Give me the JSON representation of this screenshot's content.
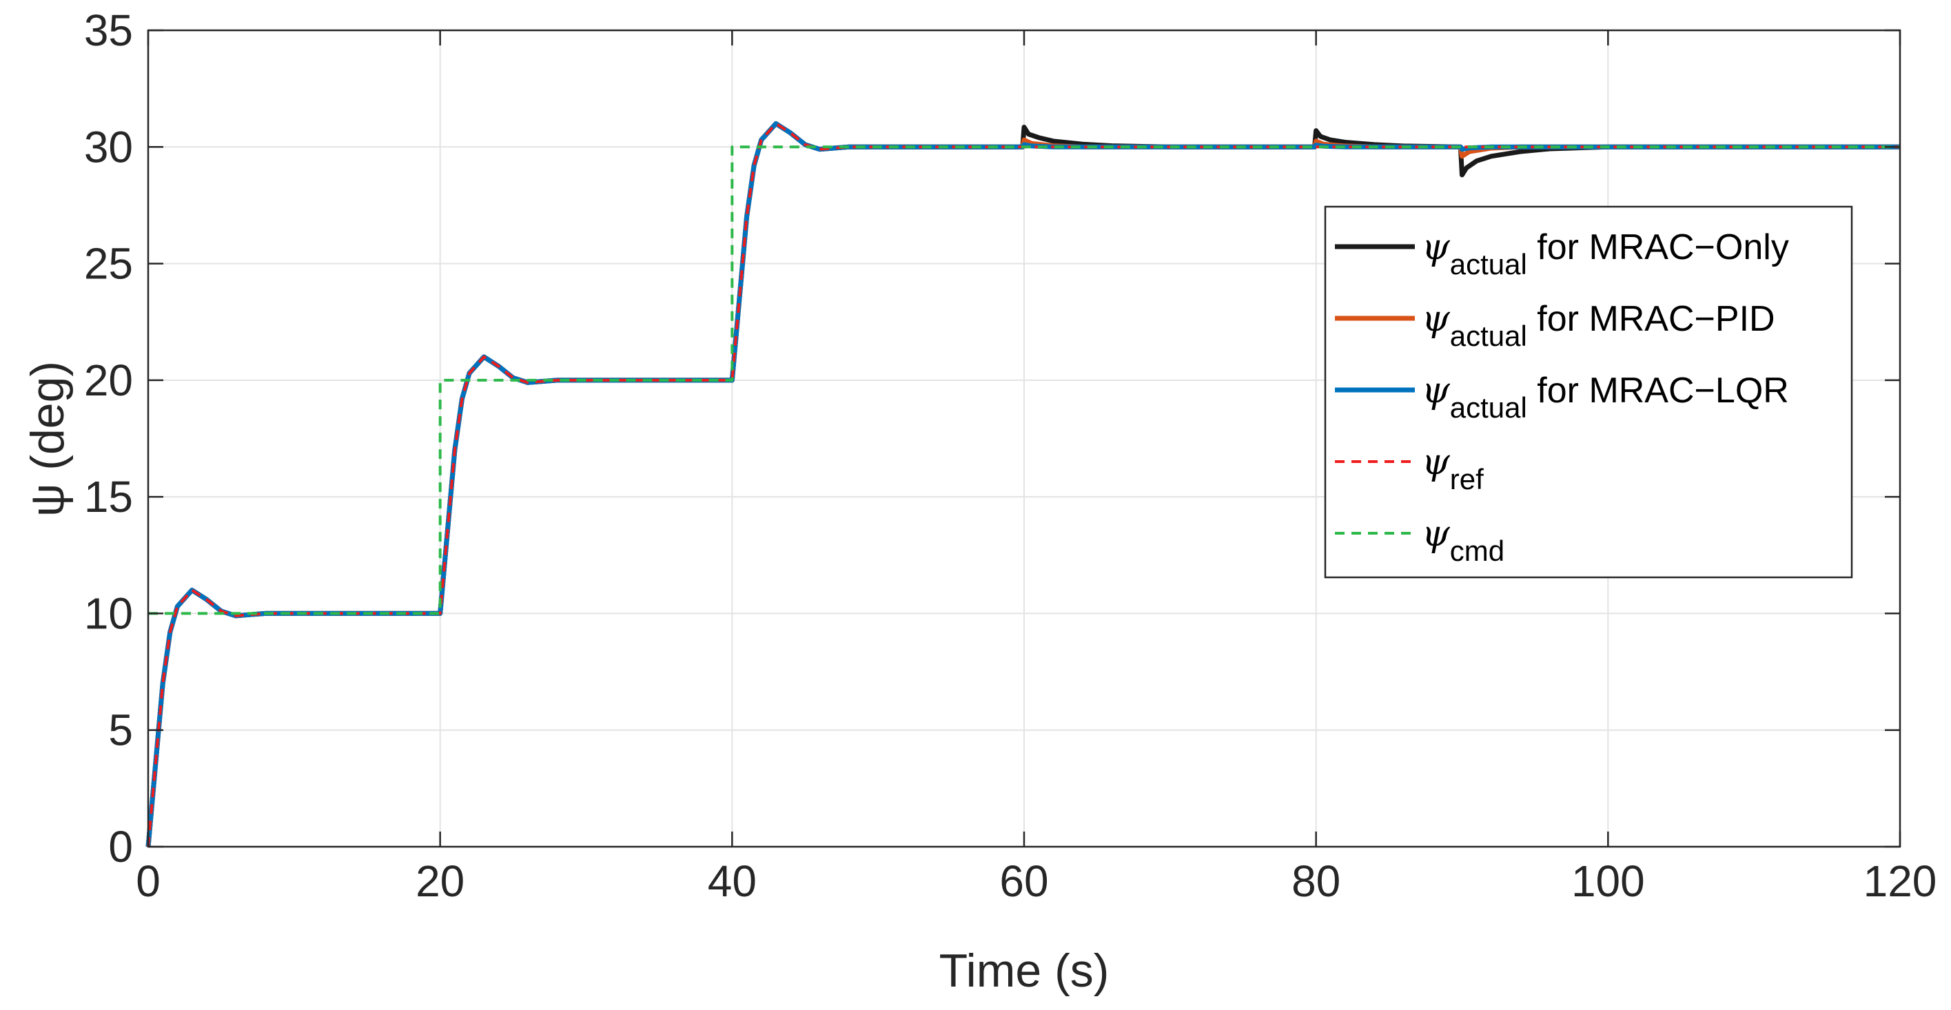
{
  "chart_data": {
    "type": "line",
    "title": "",
    "xlabel": "Time (s)",
    "ylabel": "ψ (deg)",
    "xlim": [
      0,
      120
    ],
    "ylim": [
      0,
      35
    ],
    "xticks": [
      0,
      20,
      40,
      60,
      80,
      100,
      120
    ],
    "yticks": [
      0,
      5,
      10,
      15,
      20,
      25,
      30,
      35
    ],
    "grid": true,
    "legend_position": "center-right",
    "series": [
      {
        "name": "ψactual for MRAC−Only",
        "symbol": "ψ",
        "subscript": "actual",
        "suffix": " for MRAC−Only",
        "color": "#1a1a1a",
        "style": "solid",
        "x": [
          0,
          0.5,
          1,
          1.5,
          2,
          3,
          4,
          5,
          6,
          8,
          10,
          19.9,
          20,
          20.5,
          21,
          21.5,
          22,
          23,
          24,
          25,
          26,
          28,
          30,
          39.9,
          40,
          40.5,
          41,
          41.5,
          42,
          43,
          44,
          45,
          46,
          48,
          50,
          59.9,
          60,
          60.3,
          61,
          62,
          64,
          66,
          70,
          79.9,
          80,
          80.3,
          81,
          82,
          84,
          86,
          89.9,
          90,
          90.3,
          91,
          92,
          94,
          96,
          100,
          120
        ],
        "y": [
          0,
          3.5,
          7,
          9.2,
          10.3,
          11,
          10.6,
          10.1,
          9.9,
          10,
          10,
          10,
          10,
          13.5,
          17,
          19.2,
          20.3,
          21,
          20.6,
          20.1,
          19.9,
          20,
          20,
          20,
          20,
          23.5,
          27,
          29.2,
          30.3,
          31,
          30.6,
          30.1,
          29.9,
          30,
          30,
          30,
          30.85,
          30.55,
          30.4,
          30.25,
          30.12,
          30.05,
          30,
          30,
          30.7,
          30.45,
          30.3,
          30.2,
          30.1,
          30.04,
          30,
          28.8,
          29.1,
          29.4,
          29.6,
          29.8,
          29.92,
          30,
          30
        ]
      },
      {
        "name": "ψactual for MRAC−PID",
        "symbol": "ψ",
        "subscript": "actual",
        "suffix": " for MRAC−PID",
        "color": "#d95319",
        "style": "solid",
        "x": [
          0,
          0.5,
          1,
          1.5,
          2,
          3,
          4,
          5,
          6,
          8,
          10,
          19.9,
          20,
          20.5,
          21,
          21.5,
          22,
          23,
          24,
          25,
          26,
          28,
          30,
          39.9,
          40,
          40.5,
          41,
          41.5,
          42,
          43,
          44,
          45,
          46,
          48,
          50,
          59.9,
          60,
          60.5,
          62,
          64,
          79.9,
          80,
          80.5,
          82,
          84,
          89.9,
          90,
          90.5,
          92,
          94,
          120
        ],
        "y": [
          0,
          3.5,
          7,
          9.2,
          10.3,
          11,
          10.6,
          10.1,
          9.9,
          10,
          10,
          10,
          10,
          13.5,
          17,
          19.2,
          20.3,
          21,
          20.6,
          20.1,
          19.9,
          20,
          20,
          20,
          20,
          23.5,
          27,
          29.2,
          30.3,
          31,
          30.6,
          30.1,
          29.9,
          30,
          30,
          30,
          30.3,
          30.15,
          30.05,
          30,
          30,
          30.25,
          30.12,
          30.04,
          30,
          30,
          29.6,
          29.8,
          29.95,
          30,
          30
        ]
      },
      {
        "name": "ψactual for MRAC−LQR",
        "symbol": "ψ",
        "subscript": "actual",
        "suffix": " for MRAC−LQR",
        "color": "#0072bd",
        "style": "solid",
        "x": [
          0,
          0.5,
          1,
          1.5,
          2,
          3,
          4,
          5,
          6,
          8,
          10,
          19.9,
          20,
          20.5,
          21,
          21.5,
          22,
          23,
          24,
          25,
          26,
          28,
          30,
          39.9,
          40,
          40.5,
          41,
          41.5,
          42,
          43,
          44,
          45,
          46,
          48,
          50,
          59.9,
          60,
          60.5,
          62,
          79.9,
          80,
          80.5,
          82,
          89.9,
          90,
          90.5,
          92,
          120
        ],
        "y": [
          0,
          3.5,
          7,
          9.2,
          10.3,
          11,
          10.6,
          10.1,
          9.9,
          10,
          10,
          10,
          10,
          13.5,
          17,
          19.2,
          20.3,
          21,
          20.6,
          20.1,
          19.9,
          20,
          20,
          20,
          20,
          23.5,
          27,
          29.2,
          30.3,
          31,
          30.6,
          30.1,
          29.9,
          30,
          30,
          30,
          30.1,
          30.04,
          30,
          30,
          30.08,
          30.03,
          30,
          30,
          29.9,
          29.96,
          30,
          30
        ]
      },
      {
        "name": "ψref",
        "symbol": "ψ",
        "subscript": "ref",
        "suffix": "",
        "color": "#ee1c1c",
        "style": "dashed",
        "x": [
          0,
          0.5,
          1,
          1.5,
          2,
          3,
          4,
          5,
          6,
          8,
          10,
          19.9,
          20,
          20.5,
          21,
          21.5,
          22,
          23,
          24,
          25,
          26,
          28,
          30,
          39.9,
          40,
          40.5,
          41,
          41.5,
          42,
          43,
          44,
          45,
          46,
          48,
          50,
          120
        ],
        "y": [
          0,
          3.5,
          7,
          9.2,
          10.3,
          11,
          10.6,
          10.1,
          9.9,
          10,
          10,
          10,
          10,
          13.5,
          17,
          19.2,
          20.3,
          21,
          20.6,
          20.1,
          19.9,
          20,
          20,
          20,
          20,
          23.5,
          27,
          29.2,
          30.3,
          31,
          30.6,
          30.1,
          29.9,
          30,
          30,
          30
        ]
      },
      {
        "name": "ψcmd",
        "symbol": "ψ",
        "subscript": "cmd",
        "suffix": "",
        "color": "#2db84a",
        "style": "dashed",
        "x": [
          0,
          20,
          20,
          40,
          40,
          120
        ],
        "y": [
          10,
          10,
          20,
          20,
          30,
          30
        ]
      }
    ]
  }
}
